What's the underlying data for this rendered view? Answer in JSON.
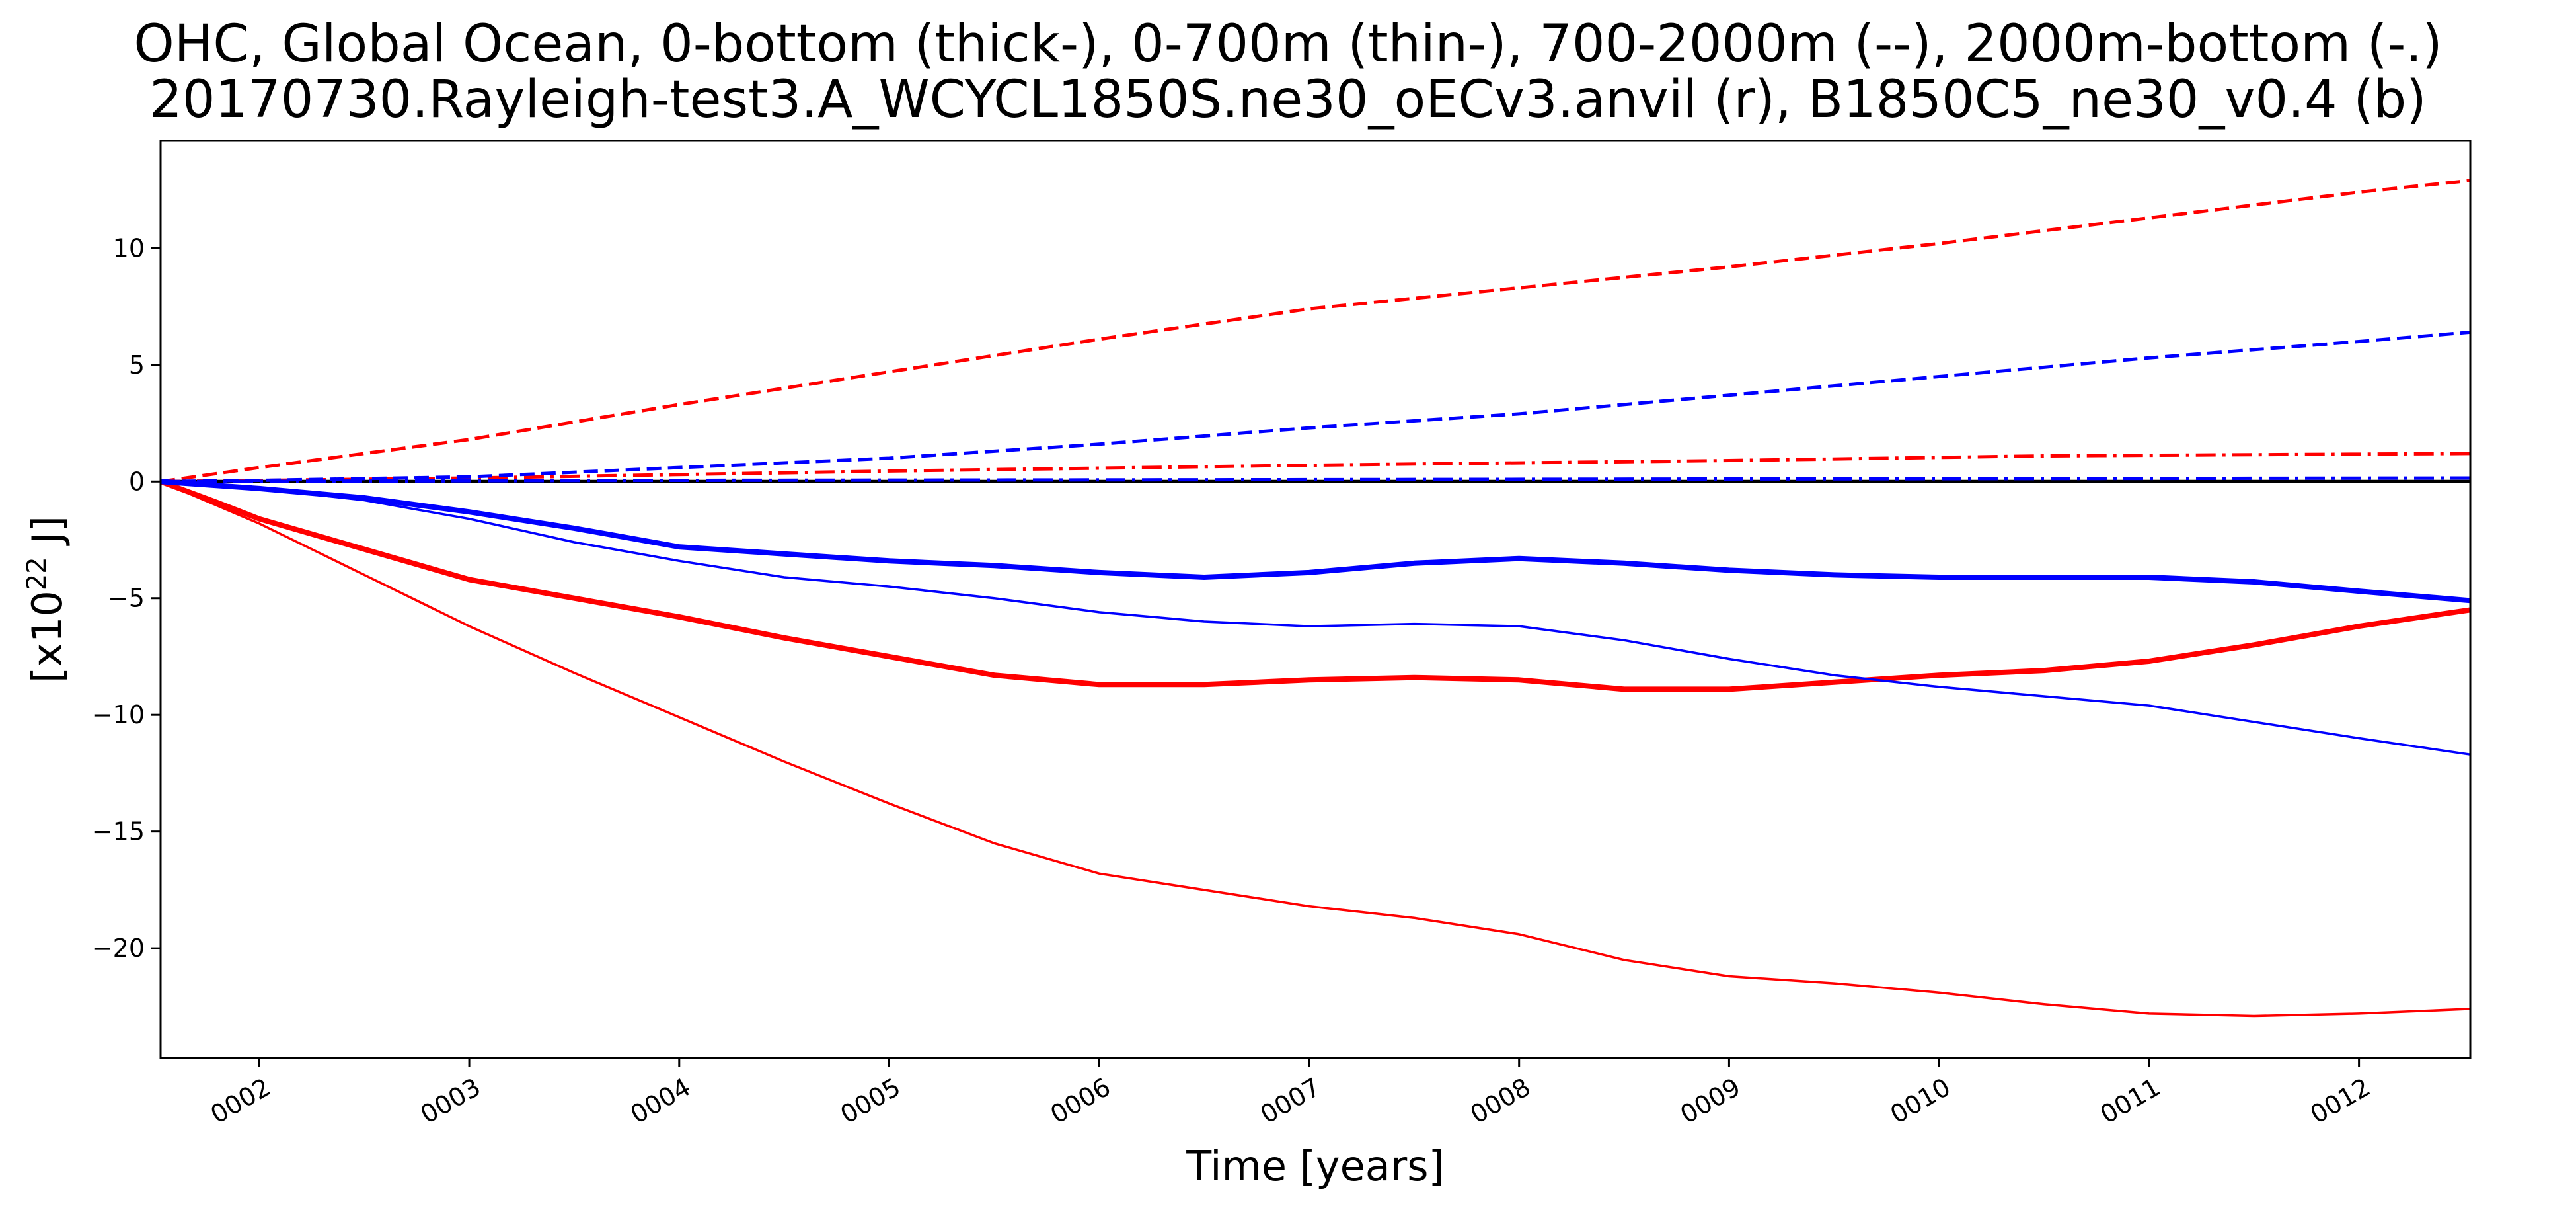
{
  "chart_data": {
    "type": "line",
    "title": "OHC, Global Ocean, 0-bottom (thick-), 0-700m (thin-), 700-2000m (--), 2000m-bottom (-.)",
    "subtitle": "20170730.Rayleigh-test3.A_WCYCL1850S.ne30_oECv3.anvil (r), B1850C5_ne30_v0.4 (b)",
    "xlabel": "Time [years]",
    "ylabel_prefix": "[x10",
    "ylabel_exp": "22",
    "ylabel_suffix": " J]",
    "xlim": [
      1.53,
      12.53
    ],
    "ylim": [
      -24.7,
      14.6
    ],
    "x_ticks": [
      2,
      3,
      4,
      5,
      6,
      7,
      8,
      9,
      10,
      11,
      12
    ],
    "x_tick_labels": [
      "0002",
      "0003",
      "0004",
      "0005",
      "0006",
      "0007",
      "0008",
      "0009",
      "0010",
      "0011",
      "0012"
    ],
    "y_ticks": [
      10,
      5,
      0,
      -5,
      -10,
      -15,
      -20
    ],
    "y_tick_labels": [
      "10",
      "5",
      "0",
      "−5",
      "−10",
      "−15",
      "−20"
    ],
    "zero_line": true,
    "grid": false,
    "colors": {
      "r": "#ff0000",
      "b": "#0000ff",
      "zero": "#000000"
    },
    "series": [
      {
        "color": "r",
        "style": "thick",
        "x": [
          1.53,
          1.8,
          2.0,
          2.5,
          3.0,
          3.5,
          4.0,
          4.5,
          5.0,
          5.5,
          6.0,
          6.5,
          7.0,
          7.5,
          8.0,
          8.5,
          9.0,
          9.5,
          10.0,
          10.5,
          11.0,
          11.5,
          12.0,
          12.53
        ],
        "y": [
          0,
          -0.9,
          -1.6,
          -2.9,
          -4.2,
          -5.0,
          -5.8,
          -6.7,
          -7.5,
          -8.3,
          -8.7,
          -8.7,
          -8.5,
          -8.4,
          -8.5,
          -8.9,
          -8.9,
          -8.6,
          -8.3,
          -8.1,
          -7.7,
          -7.0,
          -6.2,
          -5.5
        ]
      },
      {
        "color": "r",
        "style": "thin",
        "x": [
          1.53,
          2.0,
          2.5,
          3.0,
          3.5,
          4.0,
          4.5,
          5.0,
          5.5,
          6.0,
          6.5,
          7.0,
          7.5,
          8.0,
          8.5,
          9.0,
          9.5,
          10.0,
          10.5,
          11.0,
          11.5,
          12.0,
          12.53
        ],
        "y": [
          0,
          -1.8,
          -4.0,
          -6.2,
          -8.2,
          -10.1,
          -12.0,
          -13.8,
          -15.5,
          -16.8,
          -17.5,
          -18.2,
          -18.7,
          -19.4,
          -20.5,
          -21.2,
          -21.5,
          -21.9,
          -22.4,
          -22.8,
          -22.9,
          -22.8,
          -22.6
        ]
      },
      {
        "color": "r",
        "style": "dashed",
        "x": [
          1.53,
          2.0,
          3.0,
          4.0,
          5.0,
          6.0,
          7.0,
          8.0,
          9.0,
          10.0,
          11.0,
          12.0,
          12.53
        ],
        "y": [
          0,
          0.6,
          1.8,
          3.3,
          4.7,
          6.1,
          7.4,
          8.3,
          9.2,
          10.2,
          11.3,
          12.4,
          12.9
        ]
      },
      {
        "color": "r",
        "style": "dashdot",
        "x": [
          1.53,
          3.0,
          5.0,
          7.0,
          9.0,
          10.5,
          12.53
        ],
        "y": [
          0,
          0.15,
          0.45,
          0.7,
          0.9,
          1.1,
          1.2
        ]
      },
      {
        "color": "b",
        "style": "thick",
        "x": [
          1.53,
          2.0,
          2.5,
          3.0,
          3.5,
          4.0,
          4.5,
          5.0,
          5.5,
          6.0,
          6.5,
          7.0,
          7.5,
          8.0,
          8.5,
          9.0,
          9.5,
          10.0,
          10.5,
          11.0,
          11.5,
          12.0,
          12.53
        ],
        "y": [
          0,
          -0.3,
          -0.7,
          -1.3,
          -2.0,
          -2.8,
          -3.1,
          -3.4,
          -3.6,
          -3.9,
          -4.1,
          -3.9,
          -3.5,
          -3.3,
          -3.5,
          -3.8,
          -4.0,
          -4.1,
          -4.1,
          -4.1,
          -4.3,
          -4.7,
          -5.1
        ]
      },
      {
        "color": "b",
        "style": "thin",
        "x": [
          1.53,
          2.0,
          2.5,
          3.0,
          3.5,
          4.0,
          4.5,
          5.0,
          5.5,
          6.0,
          6.5,
          7.0,
          7.5,
          8.0,
          8.5,
          9.0,
          9.5,
          10.0,
          10.5,
          11.0,
          11.5,
          12.0,
          12.53
        ],
        "y": [
          0,
          -0.3,
          -0.8,
          -1.6,
          -2.6,
          -3.4,
          -4.1,
          -4.5,
          -5.0,
          -5.6,
          -6.0,
          -6.2,
          -6.1,
          -6.2,
          -6.8,
          -7.6,
          -8.3,
          -8.8,
          -9.2,
          -9.6,
          -10.3,
          -11.0,
          -11.7
        ]
      },
      {
        "color": "b",
        "style": "dashed",
        "x": [
          1.53,
          2.0,
          3.0,
          4.0,
          5.0,
          6.0,
          7.0,
          8.0,
          9.0,
          10.0,
          11.0,
          12.0,
          12.53
        ],
        "y": [
          0,
          0.05,
          0.2,
          0.6,
          1.0,
          1.6,
          2.3,
          2.9,
          3.7,
          4.5,
          5.3,
          6.0,
          6.4
        ]
      },
      {
        "color": "b",
        "style": "dashdot",
        "x": [
          1.53,
          4.0,
          7.0,
          10.0,
          12.53
        ],
        "y": [
          0,
          0.05,
          0.08,
          0.12,
          0.15
        ]
      }
    ]
  }
}
